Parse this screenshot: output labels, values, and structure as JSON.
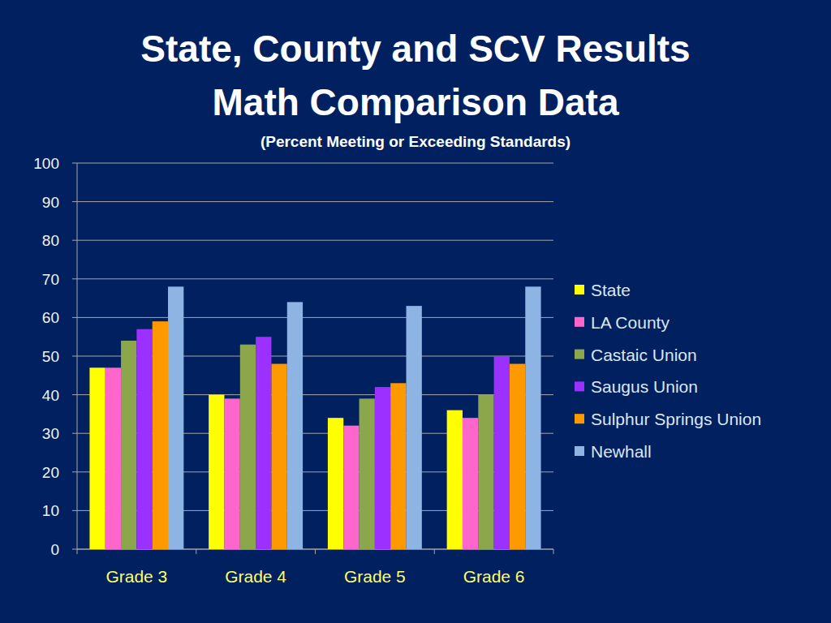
{
  "chart_data": {
    "type": "bar",
    "title": "State, County and SCV Results",
    "subtitle": "Math Comparison Data",
    "y_label": "(Percent Meeting or Exceeding Standards)",
    "categories": [
      "Grade 3",
      "Grade 4",
      "Grade 5",
      "Grade 6"
    ],
    "series": [
      {
        "name": "State",
        "color": "#ffff00",
        "values": [
          47,
          40,
          34,
          36
        ]
      },
      {
        "name": "LA County",
        "color": "#ff66cc",
        "values": [
          47,
          39,
          32,
          34
        ]
      },
      {
        "name": "Castaic Union",
        "color": "#8ca64c",
        "values": [
          54,
          53,
          39,
          40
        ]
      },
      {
        "name": "Saugus Union",
        "color": "#9b30ff",
        "values": [
          57,
          55,
          42,
          50
        ]
      },
      {
        "name": "Sulphur Springs Union",
        "color": "#ff9900",
        "values": [
          59,
          48,
          43,
          48
        ]
      },
      {
        "name": "Newhall",
        "color": "#8eb4e3",
        "values": [
          68,
          64,
          63,
          68
        ]
      }
    ],
    "ylim": [
      0,
      100
    ],
    "yticks": [
      0,
      10,
      20,
      30,
      40,
      50,
      60,
      70,
      80,
      90,
      100
    ],
    "grid": true,
    "legend": "right"
  }
}
